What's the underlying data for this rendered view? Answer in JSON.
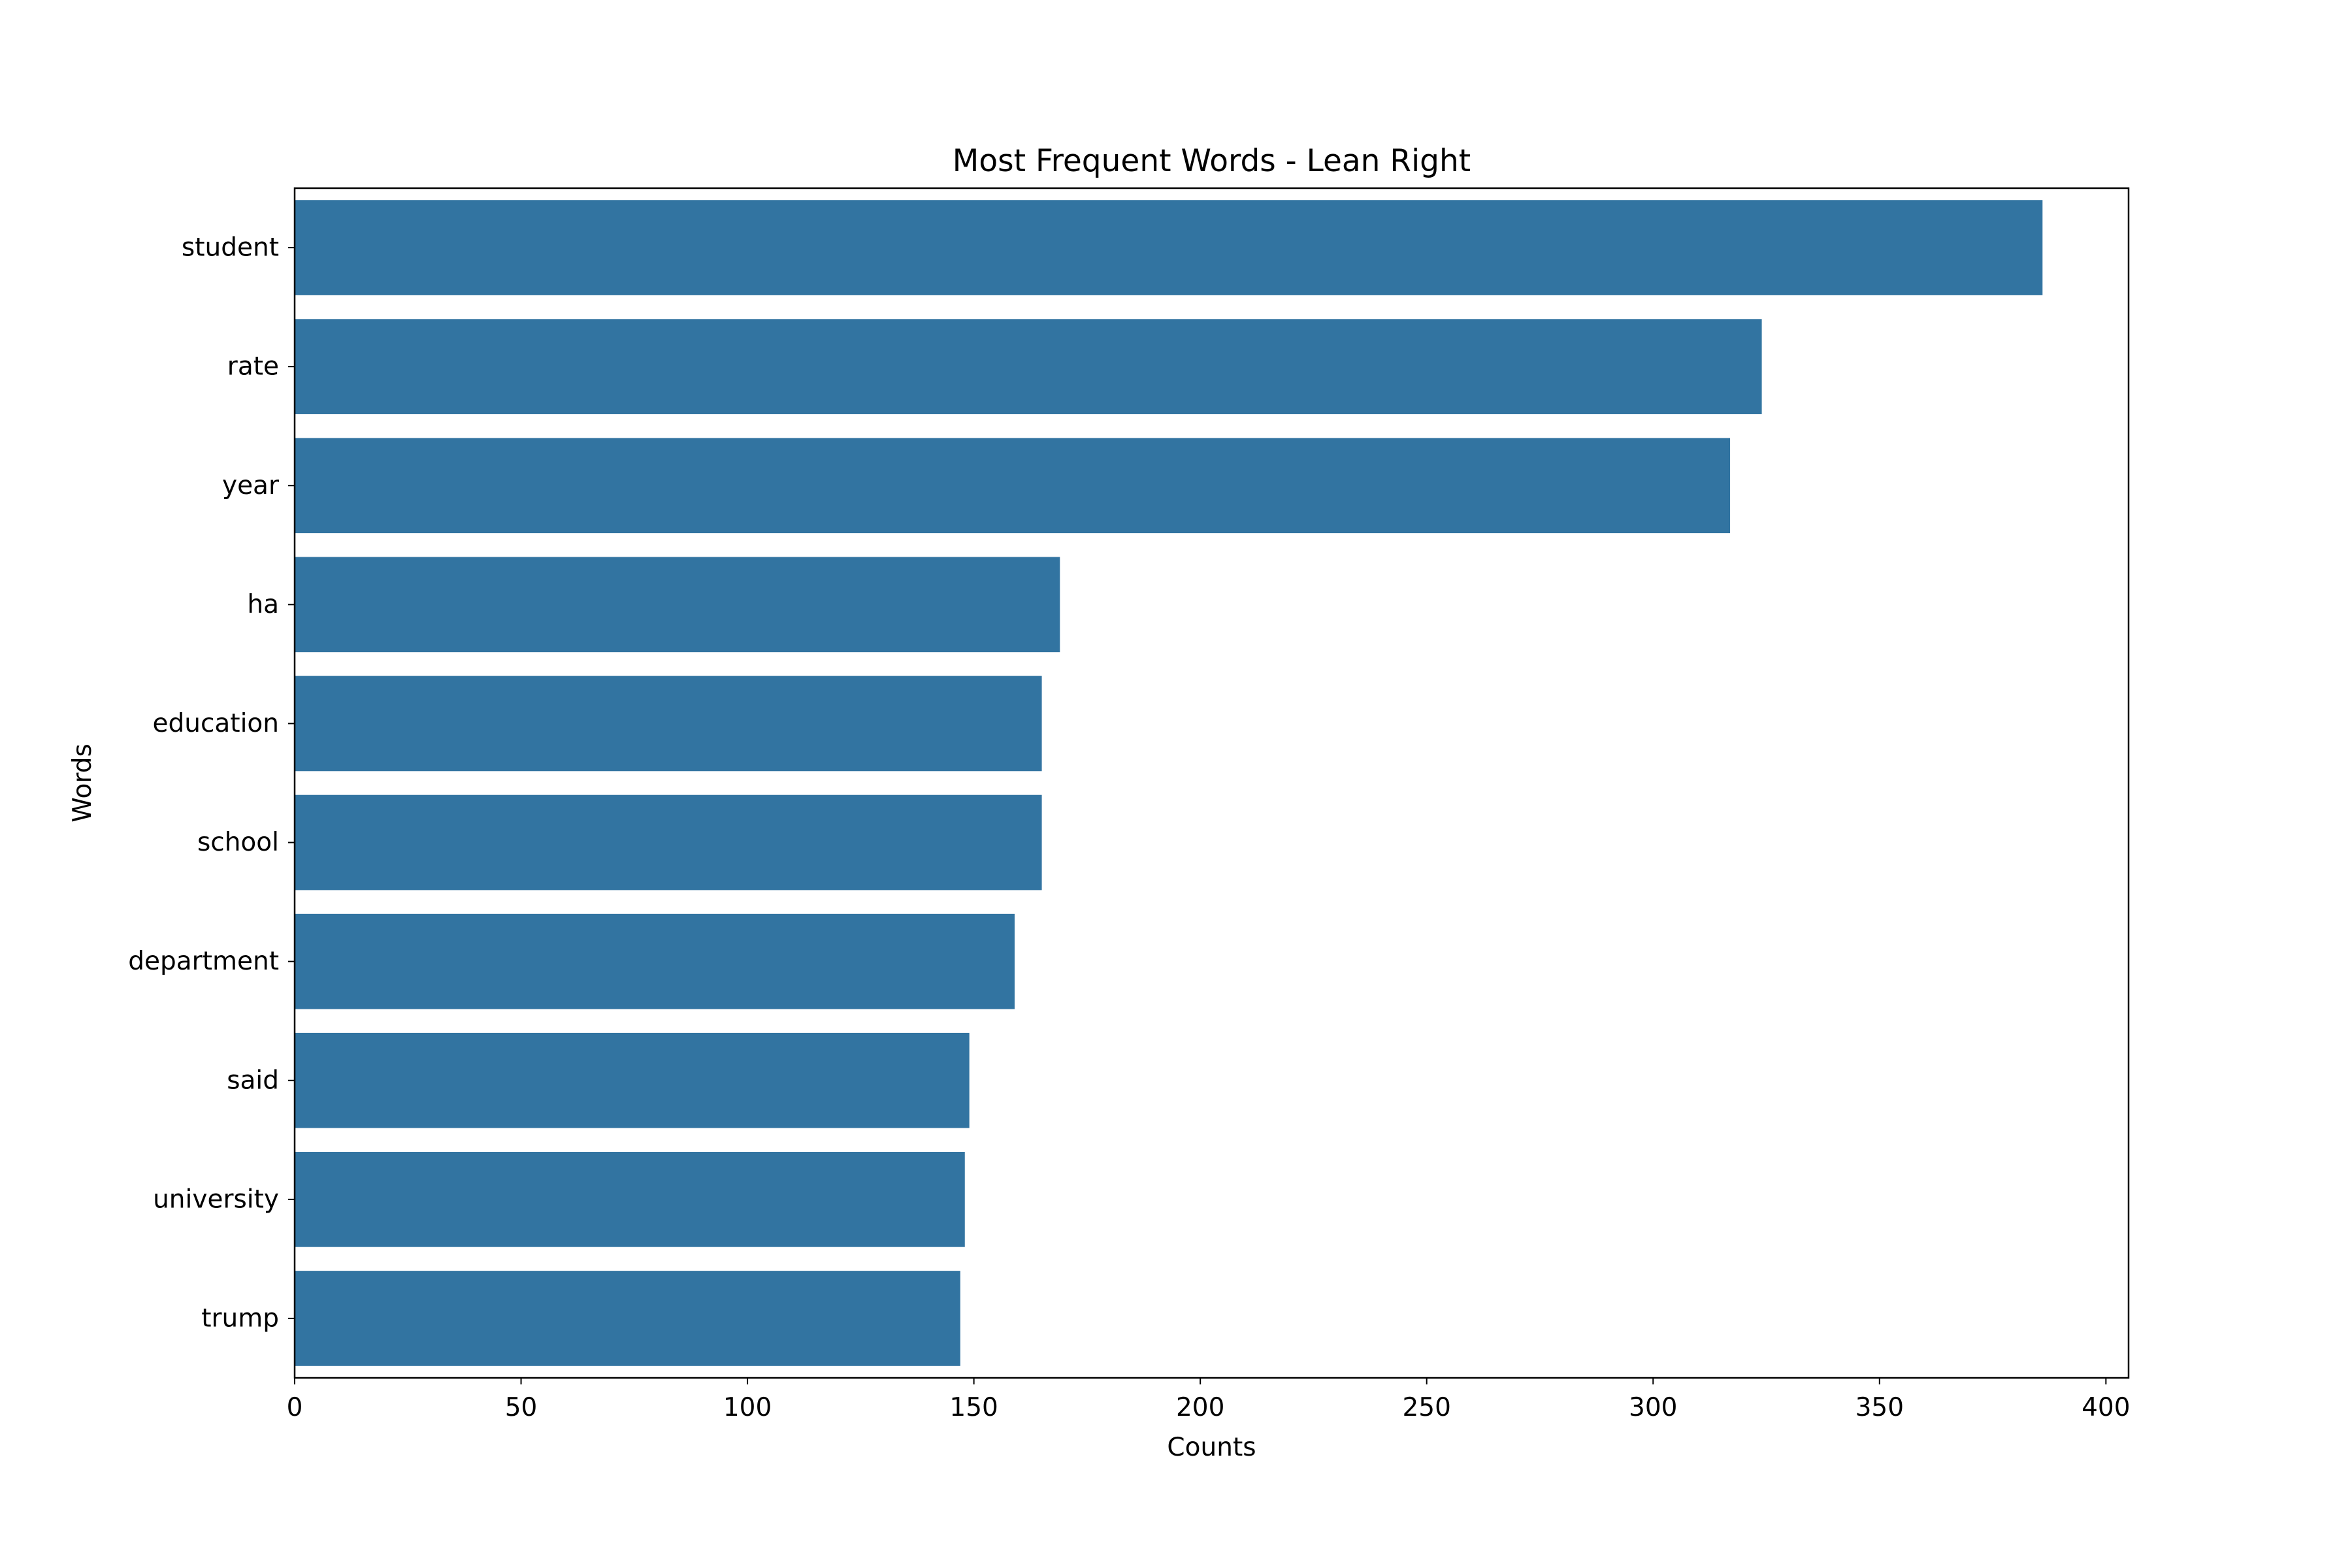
{
  "chart_data": {
    "type": "bar",
    "orientation": "horizontal",
    "title": "Most Frequent Words - Lean Right",
    "xlabel": "Counts",
    "ylabel": "Words",
    "categories": [
      "student",
      "rate",
      "year",
      "ha",
      "education",
      "school",
      "department",
      "said",
      "university",
      "trump"
    ],
    "values": [
      386,
      324,
      317,
      169,
      165,
      165,
      159,
      149,
      148,
      147
    ],
    "xlim": [
      0,
      405
    ],
    "xticks": [
      0,
      50,
      100,
      150,
      200,
      250,
      300,
      350,
      400
    ],
    "grid": false,
    "legend": "none",
    "bar_color": "#3274a1"
  }
}
